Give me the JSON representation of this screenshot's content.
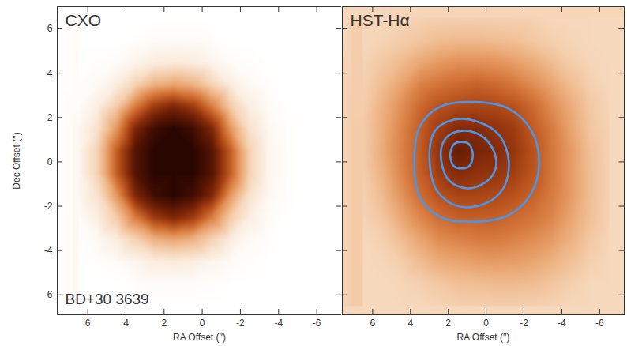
{
  "chart_data": [
    {
      "type": "heatmap",
      "title": "CXO",
      "annotation": "BD+30 3639",
      "xlabel": "RA Offset (′′)",
      "ylabel": "Dec Offset (′′)",
      "xlim": [
        7.6,
        -7.3
      ],
      "ylim": [
        -6.9,
        7.0
      ],
      "xticks": [
        6,
        4,
        2,
        0,
        -2,
        -4,
        -6
      ],
      "yticks": [
        -6,
        -4,
        -2,
        0,
        2,
        4,
        6
      ],
      "colors": [
        "#ffffff",
        "#f7dcc2",
        "#eca46a",
        "#c85a1c",
        "#7a2005",
        "#2a0600"
      ],
      "x": [
        6.5,
        5.5,
        4.5,
        3.5,
        2.5,
        1.5,
        0.5,
        -0.5,
        -1.5,
        -2.5,
        -3.5,
        -4.5,
        -5.5,
        -6.5
      ],
      "y": [
        6.5,
        5.5,
        4.5,
        3.5,
        2.5,
        1.5,
        0.5,
        -0.5,
        -1.5,
        -2.5,
        -3.5,
        -4.5,
        -5.5,
        -6.5
      ],
      "cells": [
        [
          0.02,
          0.02,
          0.02,
          0.02,
          0.02,
          0.02,
          0.02,
          0.02,
          0.02,
          0.02,
          0.02,
          0.02,
          0.02,
          0.02
        ],
        [
          0.02,
          0.02,
          0.02,
          0.03,
          0.04,
          0.04,
          0.04,
          0.03,
          0.02,
          0.02,
          0.02,
          0.02,
          0.02,
          0.02
        ],
        [
          0.02,
          0.03,
          0.04,
          0.08,
          0.12,
          0.13,
          0.12,
          0.08,
          0.04,
          0.03,
          0.02,
          0.02,
          0.02,
          0.02
        ],
        [
          0.03,
          0.05,
          0.12,
          0.24,
          0.36,
          0.4,
          0.36,
          0.24,
          0.12,
          0.05,
          0.03,
          0.02,
          0.02,
          0.02
        ],
        [
          0.04,
          0.11,
          0.27,
          0.52,
          0.72,
          0.8,
          0.72,
          0.52,
          0.27,
          0.11,
          0.04,
          0.02,
          0.02,
          0.02
        ],
        [
          0.06,
          0.17,
          0.44,
          0.8,
          0.95,
          1.0,
          0.95,
          0.8,
          0.44,
          0.17,
          0.06,
          0.03,
          0.02,
          0.02
        ],
        [
          0.07,
          0.24,
          0.6,
          0.9,
          1.0,
          1.0,
          1.0,
          0.9,
          0.6,
          0.24,
          0.07,
          0.03,
          0.02,
          0.02
        ],
        [
          0.07,
          0.24,
          0.6,
          0.9,
          1.0,
          1.0,
          1.0,
          0.9,
          0.6,
          0.24,
          0.07,
          0.03,
          0.02,
          0.02
        ],
        [
          0.06,
          0.17,
          0.44,
          0.8,
          0.95,
          1.0,
          0.95,
          0.8,
          0.44,
          0.17,
          0.06,
          0.03,
          0.02,
          0.02
        ],
        [
          0.04,
          0.11,
          0.27,
          0.52,
          0.72,
          0.8,
          0.72,
          0.52,
          0.27,
          0.11,
          0.04,
          0.02,
          0.02,
          0.02
        ],
        [
          0.03,
          0.05,
          0.12,
          0.24,
          0.36,
          0.4,
          0.36,
          0.24,
          0.12,
          0.05,
          0.03,
          0.02,
          0.02,
          0.02
        ],
        [
          0.02,
          0.03,
          0.04,
          0.08,
          0.12,
          0.13,
          0.12,
          0.08,
          0.04,
          0.03,
          0.02,
          0.02,
          0.02,
          0.02
        ],
        [
          0.02,
          0.02,
          0.02,
          0.03,
          0.04,
          0.04,
          0.04,
          0.03,
          0.02,
          0.02,
          0.02,
          0.02,
          0.02,
          0.02
        ],
        [
          0.02,
          0.02,
          0.02,
          0.02,
          0.02,
          0.02,
          0.02,
          0.02,
          0.02,
          0.02,
          0.02,
          0.02,
          0.02,
          0.02
        ]
      ]
    },
    {
      "type": "heatmap",
      "title": "HST-Hα",
      "tick_labels": "x",
      "xlabel": "RA Offset (′′)",
      "xlim": [
        7.6,
        -7.3
      ],
      "ylim": [
        -6.9,
        7.0
      ],
      "xticks": [
        6,
        4,
        2,
        0,
        -2,
        -4,
        -6
      ],
      "yticks": [
        -6,
        -4,
        -2,
        0,
        2,
        4,
        6
      ],
      "colors": [
        "#ffffff",
        "#f7dcc2",
        "#eca46a",
        "#c85a1c",
        "#7a2005",
        "#2a0600"
      ],
      "x": [
        6.5,
        5.5,
        4.5,
        3.5,
        2.5,
        1.5,
        0.5,
        -0.5,
        -1.5,
        -2.5,
        -3.5,
        -4.5,
        -5.5,
        -6.5
      ],
      "y": [
        6.5,
        5.5,
        4.5,
        3.5,
        2.5,
        1.5,
        0.5,
        -0.5,
        -1.5,
        -2.5,
        -3.5,
        -4.5,
        -5.5,
        -6.5
      ],
      "cells": [
        [
          0.22,
          0.22,
          0.23,
          0.24,
          0.25,
          0.25,
          0.25,
          0.25,
          0.24,
          0.24,
          0.22,
          0.22,
          0.22,
          0.22
        ],
        [
          0.22,
          0.24,
          0.26,
          0.29,
          0.32,
          0.33,
          0.33,
          0.32,
          0.31,
          0.28,
          0.25,
          0.23,
          0.22,
          0.22
        ],
        [
          0.24,
          0.28,
          0.33,
          0.39,
          0.43,
          0.46,
          0.46,
          0.45,
          0.42,
          0.38,
          0.32,
          0.26,
          0.23,
          0.22
        ],
        [
          0.25,
          0.32,
          0.4,
          0.5,
          0.54,
          0.57,
          0.59,
          0.57,
          0.53,
          0.47,
          0.4,
          0.32,
          0.25,
          0.22
        ],
        [
          0.26,
          0.36,
          0.46,
          0.57,
          0.64,
          0.67,
          0.68,
          0.67,
          0.64,
          0.57,
          0.47,
          0.38,
          0.28,
          0.23
        ],
        [
          0.27,
          0.37,
          0.49,
          0.6,
          0.71,
          0.78,
          0.78,
          0.75,
          0.71,
          0.61,
          0.52,
          0.4,
          0.29,
          0.24
        ],
        [
          0.27,
          0.38,
          0.5,
          0.61,
          0.74,
          0.85,
          0.81,
          0.78,
          0.73,
          0.64,
          0.53,
          0.43,
          0.31,
          0.24
        ],
        [
          0.26,
          0.36,
          0.49,
          0.6,
          0.71,
          0.78,
          0.75,
          0.74,
          0.7,
          0.63,
          0.53,
          0.43,
          0.32,
          0.24
        ],
        [
          0.25,
          0.33,
          0.45,
          0.56,
          0.64,
          0.68,
          0.68,
          0.67,
          0.64,
          0.59,
          0.52,
          0.43,
          0.32,
          0.24
        ],
        [
          0.24,
          0.29,
          0.39,
          0.49,
          0.56,
          0.6,
          0.6,
          0.6,
          0.57,
          0.54,
          0.49,
          0.4,
          0.31,
          0.24
        ],
        [
          0.22,
          0.25,
          0.32,
          0.4,
          0.47,
          0.5,
          0.52,
          0.52,
          0.5,
          0.47,
          0.43,
          0.36,
          0.28,
          0.23
        ],
        [
          0.22,
          0.23,
          0.26,
          0.32,
          0.38,
          0.4,
          0.42,
          0.43,
          0.42,
          0.4,
          0.36,
          0.31,
          0.25,
          0.22
        ],
        [
          0.22,
          0.22,
          0.23,
          0.25,
          0.28,
          0.31,
          0.32,
          0.33,
          0.33,
          0.32,
          0.29,
          0.25,
          0.22,
          0.22
        ],
        [
          0.22,
          0.22,
          0.22,
          0.22,
          0.24,
          0.25,
          0.25,
          0.26,
          0.26,
          0.25,
          0.24,
          0.22,
          0.22,
          0.22
        ]
      ],
      "contours": [
        {
          "color": "#4d95e6",
          "x": [
            3.8,
            3.5,
            2.4,
            0.6,
            -1.2,
            -2.4,
            -2.8,
            -2.4,
            -1.2,
            0.6,
            2.4,
            3.5
          ],
          "y": [
            0,
            1.6,
            2.5,
            2.7,
            2.4,
            1.4,
            0,
            -1.4,
            -2.4,
            -2.7,
            -2.5,
            -1.6
          ]
        },
        {
          "color": "#4d95e6",
          "x": [
            3.0,
            2.7,
            1.7,
            0.4,
            -0.7,
            -1.2,
            -0.9,
            0.1,
            1.5,
            2.6
          ],
          "y": [
            0.2,
            1.4,
            1.9,
            1.8,
            1.2,
            0,
            -1.2,
            -1.9,
            -2.0,
            -1.3
          ]
        },
        {
          "color": "#4d95e6",
          "x": [
            2.4,
            2.1,
            1.3,
            0.3,
            -0.4,
            -0.5,
            0,
            1.0,
            2.0
          ],
          "y": [
            0.4,
            1.1,
            1.4,
            1.2,
            0.5,
            -0.3,
            -0.9,
            -1.2,
            -0.8
          ]
        },
        {
          "color": "#4d95e6",
          "x": [
            1.9,
            1.7,
            1.3,
            0.9,
            0.7,
            0.9,
            1.3,
            1.7
          ],
          "y": [
            0.3,
            0.8,
            0.9,
            0.8,
            0.3,
            -0.2,
            -0.3,
            -0.2
          ]
        }
      ]
    }
  ]
}
